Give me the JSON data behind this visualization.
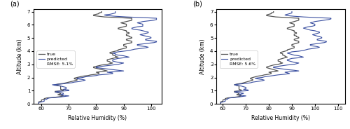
{
  "title_a": "(a)",
  "title_b": "(b)",
  "xlabel": "Relative Humidity (%)",
  "ylabel": "Altitude (km)",
  "xlim_a": [
    57,
    104
  ],
  "xlim_b": [
    57,
    113
  ],
  "ylim": [
    0,
    7.2
  ],
  "xticks_a": [
    60,
    70,
    80,
    90,
    100
  ],
  "xticks_b": [
    60,
    70,
    80,
    90,
    100,
    110
  ],
  "yticks": [
    0,
    1,
    2,
    3,
    4,
    5,
    6,
    7
  ],
  "rmse_a": "RMSE: 5.1%",
  "rmse_b": "RMSE: 5.6%",
  "legend_true": "true",
  "legend_predicted": "predicted",
  "true_color": "#555555",
  "predicted_color": "#3a4fa0",
  "true_lw": 0.9,
  "predicted_lw": 0.8,
  "altitude": [
    0.0,
    0.05,
    0.1,
    0.15,
    0.2,
    0.25,
    0.3,
    0.35,
    0.4,
    0.45,
    0.5,
    0.55,
    0.6,
    0.65,
    0.7,
    0.75,
    0.8,
    0.85,
    0.9,
    0.95,
    1.0,
    1.05,
    1.1,
    1.15,
    1.2,
    1.25,
    1.3,
    1.35,
    1.4,
    1.45,
    1.5,
    1.55,
    1.6,
    1.65,
    1.7,
    1.75,
    1.8,
    1.85,
    1.9,
    1.95,
    2.0,
    2.05,
    2.1,
    2.15,
    2.2,
    2.25,
    2.3,
    2.35,
    2.4,
    2.45,
    2.5,
    2.55,
    2.6,
    2.65,
    2.7,
    2.75,
    2.8,
    2.85,
    2.9,
    2.95,
    3.0,
    3.05,
    3.1,
    3.15,
    3.2,
    3.25,
    3.3,
    3.35,
    3.4,
    3.45,
    3.5,
    3.55,
    3.6,
    3.65,
    3.7,
    3.75,
    3.8,
    3.85,
    3.9,
    3.95,
    4.0,
    4.05,
    4.1,
    4.15,
    4.2,
    4.25,
    4.3,
    4.35,
    4.4,
    4.45,
    4.5,
    4.55,
    4.6,
    4.65,
    4.7,
    4.75,
    4.8,
    4.85,
    4.9,
    4.95,
    5.0,
    5.05,
    5.1,
    5.15,
    5.2,
    5.25,
    5.3,
    5.35,
    5.4,
    5.45,
    5.5,
    5.55,
    5.6,
    5.65,
    5.7,
    5.75,
    5.8,
    5.85,
    5.9,
    5.95,
    6.0,
    6.05,
    6.1,
    6.15,
    6.2,
    6.25,
    6.3,
    6.35,
    6.4,
    6.45,
    6.5,
    6.55,
    6.6,
    6.65,
    6.7,
    6.75,
    6.8,
    6.85,
    6.9,
    6.95,
    7.0
  ],
  "true_rh": [
    59,
    59,
    59,
    59,
    60,
    60,
    60,
    61,
    61,
    62,
    65,
    67,
    68,
    67,
    66,
    67,
    67,
    66,
    65,
    65,
    68,
    68,
    67,
    67,
    67,
    67,
    67,
    67,
    66,
    65,
    66,
    68,
    69,
    70,
    71,
    72,
    73,
    73,
    72,
    72,
    73,
    74,
    75,
    77,
    78,
    80,
    81,
    81,
    80,
    82,
    84,
    83,
    82,
    81,
    80,
    79,
    79,
    80,
    81,
    82,
    84,
    85,
    86,
    85,
    85,
    84,
    84,
    84,
    85,
    86,
    87,
    88,
    87,
    87,
    86,
    86,
    86,
    85,
    85,
    86,
    87,
    88,
    88,
    89,
    90,
    91,
    91,
    91,
    90,
    90,
    90,
    91,
    92,
    93,
    93,
    93,
    92,
    91,
    91,
    92,
    93,
    93,
    92,
    92,
    91,
    91,
    91,
    92,
    92,
    91,
    91,
    91,
    90,
    89,
    88,
    88,
    89,
    90,
    91,
    91,
    91,
    91,
    90,
    89,
    90,
    91,
    92,
    93,
    93,
    93,
    93,
    88,
    83,
    81,
    79,
    79,
    80,
    81,
    81,
    82,
    82
  ],
  "pred_rh_a": [
    59,
    59,
    59,
    60,
    61,
    61,
    61,
    62,
    62,
    63,
    66,
    68,
    70,
    68,
    67,
    68,
    68,
    67,
    65,
    66,
    70,
    70,
    68,
    69,
    69,
    69,
    68,
    67,
    65,
    64,
    67,
    69,
    71,
    72,
    74,
    75,
    76,
    75,
    73,
    73,
    75,
    76,
    78,
    80,
    81,
    84,
    86,
    86,
    84,
    87,
    90,
    88,
    86,
    84,
    82,
    80,
    80,
    82,
    84,
    86,
    88,
    89,
    90,
    88,
    87,
    86,
    86,
    86,
    87,
    88,
    90,
    92,
    91,
    90,
    88,
    87,
    87,
    86,
    87,
    88,
    90,
    92,
    93,
    94,
    96,
    98,
    99,
    98,
    96,
    95,
    95,
    97,
    99,
    101,
    102,
    102,
    100,
    98,
    98,
    99,
    100,
    100,
    99,
    98,
    97,
    96,
    97,
    98,
    99,
    99,
    98,
    97,
    96,
    94,
    93,
    93,
    94,
    95,
    97,
    97,
    97,
    97,
    96,
    95,
    96,
    97,
    99,
    101,
    102,
    102,
    102,
    97,
    91,
    87,
    84,
    83,
    85,
    86,
    87,
    87,
    87
  ],
  "pred_rh_b": [
    59,
    59,
    59,
    60,
    61,
    61,
    61,
    62,
    62,
    63,
    66,
    68,
    70,
    68,
    67,
    68,
    69,
    67,
    65,
    66,
    71,
    71,
    69,
    70,
    70,
    70,
    69,
    68,
    66,
    65,
    67,
    70,
    72,
    73,
    75,
    77,
    78,
    77,
    75,
    74,
    77,
    78,
    80,
    82,
    84,
    87,
    89,
    88,
    87,
    90,
    93,
    91,
    88,
    86,
    84,
    82,
    82,
    84,
    86,
    88,
    91,
    92,
    93,
    91,
    90,
    89,
    88,
    88,
    89,
    90,
    93,
    95,
    94,
    93,
    91,
    90,
    89,
    88,
    89,
    90,
    93,
    95,
    96,
    97,
    99,
    101,
    102,
    101,
    99,
    98,
    98,
    100,
    102,
    104,
    105,
    105,
    103,
    101,
    101,
    102,
    103,
    103,
    102,
    101,
    100,
    99,
    100,
    101,
    102,
    102,
    101,
    100,
    98,
    97,
    96,
    95,
    96,
    97,
    99,
    100,
    100,
    100,
    99,
    98,
    99,
    100,
    102,
    104,
    106,
    107,
    107,
    101,
    95,
    91,
    88,
    87,
    88,
    89,
    90,
    90,
    90
  ]
}
